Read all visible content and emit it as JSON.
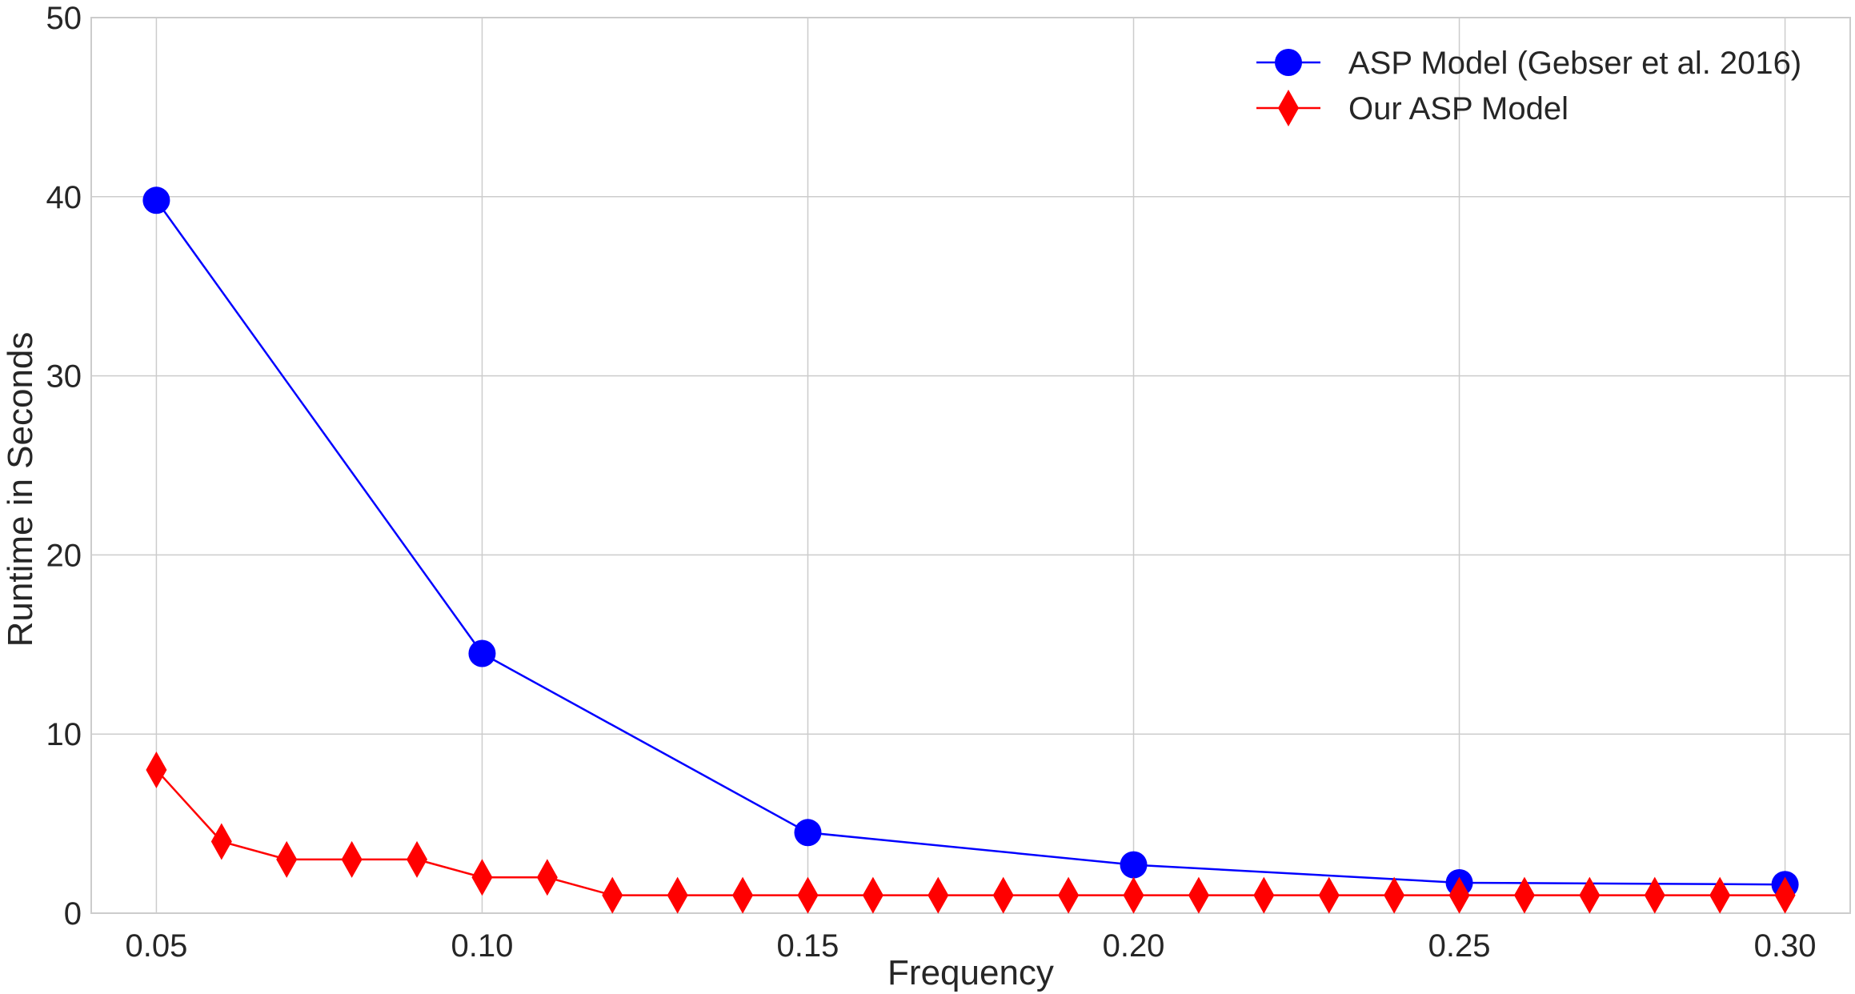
{
  "chart_data": {
    "type": "line",
    "title": "",
    "xlabel": "Frequency",
    "ylabel": "Runtime in Seconds",
    "xlim": [
      0.04,
      0.31
    ],
    "ylim": [
      0,
      50
    ],
    "xticks": [
      "0.05",
      "0.10",
      "0.15",
      "0.20",
      "0.25",
      "0.30"
    ],
    "yticks": [
      "0",
      "10",
      "20",
      "30",
      "40",
      "50"
    ],
    "grid": true,
    "legend_position": "top-right",
    "series": [
      {
        "name": "ASP Model (Gebser et al. 2016)",
        "color": "#0000ff",
        "marker": "circle",
        "x": [
          0.05,
          0.1,
          0.15,
          0.2,
          0.25,
          0.3
        ],
        "y": [
          39.8,
          14.5,
          4.5,
          2.7,
          1.7,
          1.6
        ]
      },
      {
        "name": "Our ASP Model",
        "color": "#ff0000",
        "marker": "diamond",
        "x": [
          0.05,
          0.06,
          0.07,
          0.08,
          0.09,
          0.1,
          0.11,
          0.12,
          0.13,
          0.14,
          0.15,
          0.16,
          0.17,
          0.18,
          0.19,
          0.2,
          0.21,
          0.22,
          0.23,
          0.24,
          0.25,
          0.26,
          0.27,
          0.28,
          0.29,
          0.3
        ],
        "y": [
          8,
          4,
          3,
          3,
          3,
          2,
          2,
          1,
          1,
          1,
          1,
          1,
          1,
          1,
          1,
          1,
          1,
          1,
          1,
          1,
          1,
          1,
          1,
          1,
          1,
          1
        ]
      }
    ]
  }
}
